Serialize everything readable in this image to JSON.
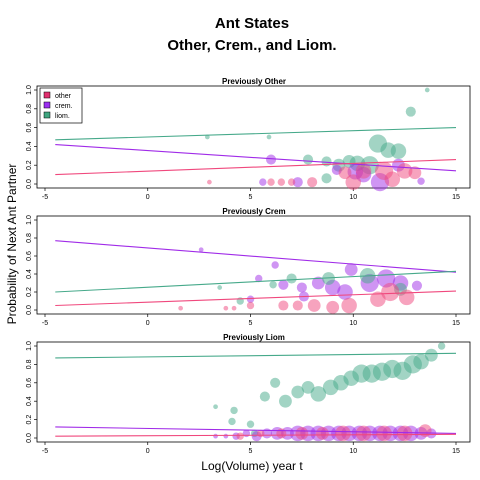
{
  "figure": {
    "title_line1": "Ant States",
    "title_line2": "Other, Crem., and Liom.",
    "ylabel": "Probability of Next Ant Partner",
    "xlabel": "Log(Volume) year t"
  },
  "legend": {
    "placement": "top-left of first panel",
    "items": [
      {
        "label": "other",
        "color": "#E0306F"
      },
      {
        "label": "crem.",
        "color": "#9B30F0"
      },
      {
        "label": "liom.",
        "color": "#3FA57F"
      }
    ]
  },
  "colors": {
    "other": "#F0487D",
    "crem": "#A02BE8",
    "liom": "#46A98A"
  },
  "chart_data": [
    {
      "type": "scatter",
      "title": "Previously Other",
      "xlim": [
        -5,
        15
      ],
      "ylim": [
        0,
        1
      ],
      "xticks": [
        -5,
        0,
        5,
        10,
        15
      ],
      "yticks": [
        0.0,
        0.2,
        0.4,
        0.6,
        0.8,
        1.0
      ],
      "lines": [
        {
          "series": "liom",
          "x": [
            -4.5,
            15
          ],
          "y": [
            0.47,
            0.6
          ]
        },
        {
          "series": "crem",
          "x": [
            -4.5,
            15
          ],
          "y": [
            0.42,
            0.14
          ]
        },
        {
          "series": "other",
          "x": [
            -4.5,
            15
          ],
          "y": [
            0.1,
            0.26
          ]
        }
      ],
      "points": [
        {
          "series": "liom",
          "x": 5.9,
          "y": 0.5,
          "s": 1
        },
        {
          "series": "liom",
          "x": 2.9,
          "y": 0.5,
          "s": 1
        },
        {
          "series": "liom",
          "x": 7.8,
          "y": 0.26,
          "s": 3
        },
        {
          "series": "liom",
          "x": 8.7,
          "y": 0.24,
          "s": 3
        },
        {
          "series": "liom",
          "x": 9.3,
          "y": 0.2,
          "s": 4
        },
        {
          "series": "liom",
          "x": 9.8,
          "y": 0.24,
          "s": 4
        },
        {
          "series": "liom",
          "x": 10.2,
          "y": 0.22,
          "s": 5
        },
        {
          "series": "liom",
          "x": 11.2,
          "y": 0.43,
          "s": 6
        },
        {
          "series": "liom",
          "x": 11.7,
          "y": 0.36,
          "s": 5
        },
        {
          "series": "liom",
          "x": 12.2,
          "y": 0.35,
          "s": 5
        },
        {
          "series": "liom",
          "x": 12.8,
          "y": 0.77,
          "s": 3
        },
        {
          "series": "liom",
          "x": 13.6,
          "y": 1.0,
          "s": 1
        },
        {
          "series": "liom",
          "x": 10.8,
          "y": 0.2,
          "s": 6
        },
        {
          "series": "liom",
          "x": 8.7,
          "y": 0.06,
          "s": 3
        },
        {
          "series": "crem",
          "x": 6.0,
          "y": 0.26,
          "s": 3
        },
        {
          "series": "crem",
          "x": 9.2,
          "y": 0.15,
          "s": 3
        },
        {
          "series": "crem",
          "x": 10.1,
          "y": 0.13,
          "s": 5
        },
        {
          "series": "crem",
          "x": 11.3,
          "y": 0.02,
          "s": 6
        },
        {
          "series": "crem",
          "x": 12.2,
          "y": 0.2,
          "s": 4
        },
        {
          "series": "crem",
          "x": 13.3,
          "y": 0.03,
          "s": 2
        },
        {
          "series": "crem",
          "x": 5.6,
          "y": 0.02,
          "s": 2
        },
        {
          "series": "crem",
          "x": 7.3,
          "y": 0.02,
          "s": 3
        },
        {
          "series": "crem",
          "x": 10.5,
          "y": 0.1,
          "s": 5
        },
        {
          "series": "other",
          "x": 3.0,
          "y": 0.02,
          "s": 1
        },
        {
          "series": "other",
          "x": 6.0,
          "y": 0.02,
          "s": 2
        },
        {
          "series": "other",
          "x": 6.5,
          "y": 0.02,
          "s": 2
        },
        {
          "series": "other",
          "x": 7.0,
          "y": 0.02,
          "s": 2
        },
        {
          "series": "other",
          "x": 8.0,
          "y": 0.02,
          "s": 3
        },
        {
          "series": "other",
          "x": 9.6,
          "y": 0.12,
          "s": 4
        },
        {
          "series": "other",
          "x": 10.5,
          "y": 0.14,
          "s": 5
        },
        {
          "series": "other",
          "x": 11.5,
          "y": 0.14,
          "s": 6
        },
        {
          "series": "other",
          "x": 12.5,
          "y": 0.14,
          "s": 5
        },
        {
          "series": "other",
          "x": 13.0,
          "y": 0.12,
          "s": 4
        },
        {
          "series": "other",
          "x": 10.0,
          "y": 0.02,
          "s": 5
        },
        {
          "series": "other",
          "x": 11.9,
          "y": 0.05,
          "s": 5
        }
      ]
    },
    {
      "type": "scatter",
      "title": "Previously Crem",
      "xlim": [
        -5,
        15
      ],
      "ylim": [
        0,
        1
      ],
      "xticks": [
        -5,
        0,
        5,
        10,
        15
      ],
      "yticks": [
        0.0,
        0.2,
        0.4,
        0.6,
        0.8,
        1.0
      ],
      "lines": [
        {
          "series": "crem",
          "x": [
            -4.5,
            15
          ],
          "y": [
            0.77,
            0.42
          ]
        },
        {
          "series": "liom",
          "x": [
            -4.5,
            15
          ],
          "y": [
            0.2,
            0.43
          ]
        },
        {
          "series": "other",
          "x": [
            -4.5,
            15
          ],
          "y": [
            0.05,
            0.21
          ]
        }
      ],
      "points": [
        {
          "series": "crem",
          "x": 2.6,
          "y": 0.67,
          "s": 1
        },
        {
          "series": "crem",
          "x": 6.2,
          "y": 0.5,
          "s": 2
        },
        {
          "series": "crem",
          "x": 5.4,
          "y": 0.35,
          "s": 2
        },
        {
          "series": "crem",
          "x": 6.6,
          "y": 0.28,
          "s": 3
        },
        {
          "series": "crem",
          "x": 7.5,
          "y": 0.25,
          "s": 3
        },
        {
          "series": "crem",
          "x": 8.3,
          "y": 0.3,
          "s": 4
        },
        {
          "series": "crem",
          "x": 9.0,
          "y": 0.25,
          "s": 5
        },
        {
          "series": "crem",
          "x": 9.9,
          "y": 0.45,
          "s": 4
        },
        {
          "series": "crem",
          "x": 10.8,
          "y": 0.3,
          "s": 6
        },
        {
          "series": "crem",
          "x": 11.6,
          "y": 0.35,
          "s": 6
        },
        {
          "series": "crem",
          "x": 12.3,
          "y": 0.3,
          "s": 5
        },
        {
          "series": "crem",
          "x": 13.1,
          "y": 0.27,
          "s": 3
        },
        {
          "series": "crem",
          "x": 5.0,
          "y": 0.12,
          "s": 2
        },
        {
          "series": "crem",
          "x": 7.6,
          "y": 0.15,
          "s": 3
        },
        {
          "series": "crem",
          "x": 9.6,
          "y": 0.2,
          "s": 5
        },
        {
          "series": "liom",
          "x": 3.5,
          "y": 0.25,
          "s": 1
        },
        {
          "series": "liom",
          "x": 4.5,
          "y": 0.1,
          "s": 2
        },
        {
          "series": "liom",
          "x": 6.1,
          "y": 0.28,
          "s": 2
        },
        {
          "series": "liom",
          "x": 7.0,
          "y": 0.35,
          "s": 3
        },
        {
          "series": "liom",
          "x": 8.8,
          "y": 0.35,
          "s": 4
        },
        {
          "series": "liom",
          "x": 10.7,
          "y": 0.38,
          "s": 5
        },
        {
          "series": "liom",
          "x": 12.3,
          "y": 0.23,
          "s": 4
        },
        {
          "series": "other",
          "x": 1.6,
          "y": 0.02,
          "s": 1
        },
        {
          "series": "other",
          "x": 3.8,
          "y": 0.02,
          "s": 1
        },
        {
          "series": "other",
          "x": 5.0,
          "y": 0.05,
          "s": 2
        },
        {
          "series": "other",
          "x": 6.6,
          "y": 0.05,
          "s": 3
        },
        {
          "series": "other",
          "x": 7.3,
          "y": 0.05,
          "s": 3
        },
        {
          "series": "other",
          "x": 8.1,
          "y": 0.05,
          "s": 4
        },
        {
          "series": "other",
          "x": 9.0,
          "y": 0.03,
          "s": 4
        },
        {
          "series": "other",
          "x": 9.8,
          "y": 0.05,
          "s": 5
        },
        {
          "series": "other",
          "x": 11.2,
          "y": 0.12,
          "s": 5
        },
        {
          "series": "other",
          "x": 11.8,
          "y": 0.2,
          "s": 6
        },
        {
          "series": "other",
          "x": 12.6,
          "y": 0.14,
          "s": 5
        },
        {
          "series": "other",
          "x": 4.2,
          "y": 0.02,
          "s": 1
        }
      ]
    },
    {
      "type": "scatter",
      "title": "Previously Liom",
      "xlim": [
        -5,
        15
      ],
      "ylim": [
        0,
        1
      ],
      "xticks": [
        -5,
        0,
        5,
        10,
        15
      ],
      "yticks": [
        0.0,
        0.2,
        0.4,
        0.6,
        0.8,
        1.0
      ],
      "lines": [
        {
          "series": "liom",
          "x": [
            -4.5,
            15
          ],
          "y": [
            0.87,
            0.92
          ]
        },
        {
          "series": "crem",
          "x": [
            -4.5,
            15
          ],
          "y": [
            0.12,
            0.05
          ]
        },
        {
          "series": "other",
          "x": [
            -4.5,
            15
          ],
          "y": [
            0.02,
            0.04
          ]
        }
      ],
      "points": [
        {
          "series": "liom",
          "x": 3.3,
          "y": 0.34,
          "s": 1
        },
        {
          "series": "liom",
          "x": 4.2,
          "y": 0.3,
          "s": 2
        },
        {
          "series": "liom",
          "x": 4.1,
          "y": 0.18,
          "s": 2
        },
        {
          "series": "liom",
          "x": 5.0,
          "y": 0.15,
          "s": 2
        },
        {
          "series": "liom",
          "x": 5.7,
          "y": 0.45,
          "s": 3
        },
        {
          "series": "liom",
          "x": 6.2,
          "y": 0.6,
          "s": 3
        },
        {
          "series": "liom",
          "x": 6.7,
          "y": 0.4,
          "s": 4
        },
        {
          "series": "liom",
          "x": 7.3,
          "y": 0.5,
          "s": 4
        },
        {
          "series": "liom",
          "x": 7.8,
          "y": 0.55,
          "s": 4
        },
        {
          "series": "liom",
          "x": 8.3,
          "y": 0.48,
          "s": 5
        },
        {
          "series": "liom",
          "x": 8.9,
          "y": 0.55,
          "s": 5
        },
        {
          "series": "liom",
          "x": 9.4,
          "y": 0.6,
          "s": 5
        },
        {
          "series": "liom",
          "x": 9.9,
          "y": 0.65,
          "s": 5
        },
        {
          "series": "liom",
          "x": 10.4,
          "y": 0.7,
          "s": 6
        },
        {
          "series": "liom",
          "x": 10.9,
          "y": 0.7,
          "s": 6
        },
        {
          "series": "liom",
          "x": 11.4,
          "y": 0.72,
          "s": 6
        },
        {
          "series": "liom",
          "x": 11.9,
          "y": 0.75,
          "s": 6
        },
        {
          "series": "liom",
          "x": 12.4,
          "y": 0.73,
          "s": 6
        },
        {
          "series": "liom",
          "x": 12.9,
          "y": 0.8,
          "s": 6
        },
        {
          "series": "liom",
          "x": 13.3,
          "y": 0.83,
          "s": 5
        },
        {
          "series": "liom",
          "x": 13.8,
          "y": 0.9,
          "s": 4
        },
        {
          "series": "liom",
          "x": 14.3,
          "y": 1.0,
          "s": 2
        },
        {
          "series": "liom",
          "x": 5.2,
          "y": 0.05,
          "s": 2
        },
        {
          "series": "crem",
          "x": 3.3,
          "y": 0.02,
          "s": 1
        },
        {
          "series": "crem",
          "x": 3.8,
          "y": 0.02,
          "s": 1
        },
        {
          "series": "crem",
          "x": 4.3,
          "y": 0.02,
          "s": 2
        },
        {
          "series": "crem",
          "x": 4.8,
          "y": 0.05,
          "s": 2
        },
        {
          "series": "crem",
          "x": 5.3,
          "y": 0.02,
          "s": 3
        },
        {
          "series": "crem",
          "x": 5.8,
          "y": 0.05,
          "s": 3
        },
        {
          "series": "crem",
          "x": 6.3,
          "y": 0.05,
          "s": 4
        },
        {
          "series": "crem",
          "x": 6.8,
          "y": 0.05,
          "s": 4
        },
        {
          "series": "crem",
          "x": 7.3,
          "y": 0.05,
          "s": 5
        },
        {
          "series": "crem",
          "x": 7.8,
          "y": 0.05,
          "s": 5
        },
        {
          "series": "crem",
          "x": 8.3,
          "y": 0.05,
          "s": 5
        },
        {
          "series": "crem",
          "x": 8.8,
          "y": 0.05,
          "s": 5
        },
        {
          "series": "crem",
          "x": 9.3,
          "y": 0.05,
          "s": 5
        },
        {
          "series": "crem",
          "x": 9.8,
          "y": 0.05,
          "s": 5
        },
        {
          "series": "crem",
          "x": 10.3,
          "y": 0.05,
          "s": 5
        },
        {
          "series": "crem",
          "x": 10.8,
          "y": 0.05,
          "s": 5
        },
        {
          "series": "crem",
          "x": 11.3,
          "y": 0.05,
          "s": 5
        },
        {
          "series": "crem",
          "x": 11.8,
          "y": 0.05,
          "s": 5
        },
        {
          "series": "crem",
          "x": 12.3,
          "y": 0.05,
          "s": 5
        },
        {
          "series": "crem",
          "x": 12.8,
          "y": 0.05,
          "s": 5
        },
        {
          "series": "crem",
          "x": 13.3,
          "y": 0.05,
          "s": 4
        },
        {
          "series": "crem",
          "x": 13.8,
          "y": 0.05,
          "s": 3
        },
        {
          "series": "other",
          "x": 4.5,
          "y": 0.02,
          "s": 2
        },
        {
          "series": "other",
          "x": 5.5,
          "y": 0.05,
          "s": 2
        },
        {
          "series": "other",
          "x": 6.5,
          "y": 0.05,
          "s": 3
        },
        {
          "series": "other",
          "x": 7.5,
          "y": 0.05,
          "s": 4
        },
        {
          "series": "other",
          "x": 8.5,
          "y": 0.05,
          "s": 4
        },
        {
          "series": "other",
          "x": 9.5,
          "y": 0.05,
          "s": 5
        },
        {
          "series": "other",
          "x": 10.5,
          "y": 0.05,
          "s": 5
        },
        {
          "series": "other",
          "x": 11.5,
          "y": 0.05,
          "s": 5
        },
        {
          "series": "other",
          "x": 12.5,
          "y": 0.05,
          "s": 5
        },
        {
          "series": "other",
          "x": 13.5,
          "y": 0.08,
          "s": 4
        }
      ]
    }
  ]
}
